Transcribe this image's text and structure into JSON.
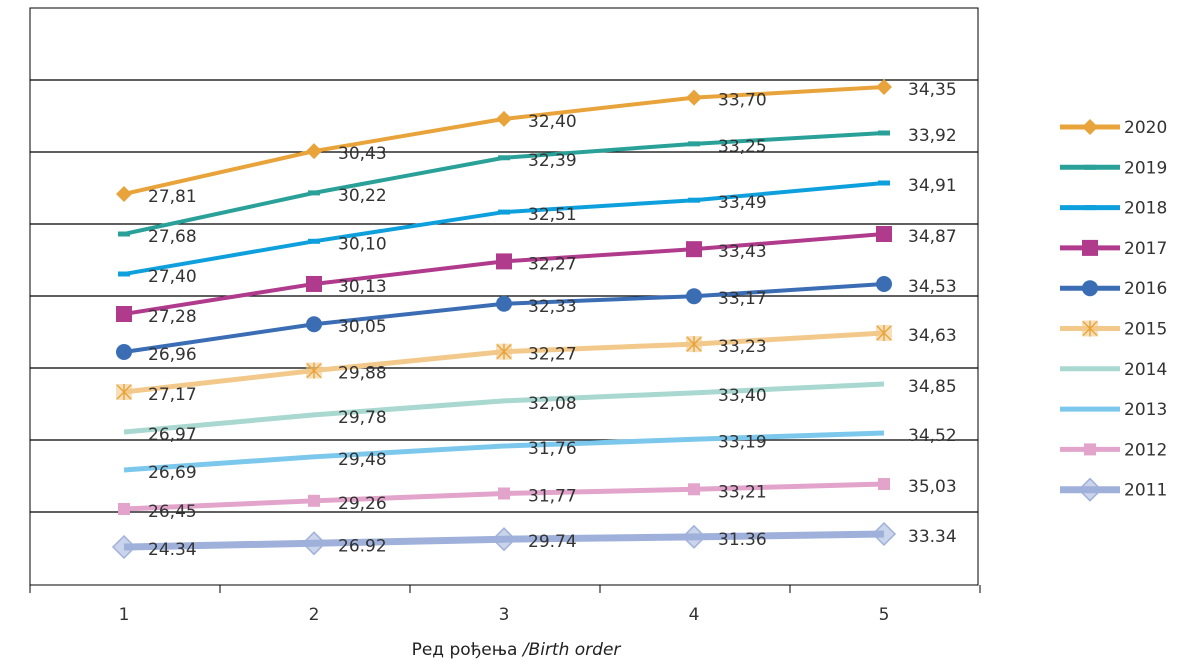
{
  "chart_data": {
    "type": "line",
    "title": "",
    "xlabel_main": "Ред рођења",
    "xlabel_italic": " /Birth order",
    "ylabel": "",
    "x": [
      1,
      2,
      3,
      4,
      5
    ],
    "grid": "horizontal",
    "legend_position": "right",
    "series": [
      {
        "name": "2020",
        "values": [
          27.81,
          30.43,
          32.4,
          33.7,
          34.35
        ],
        "labels": [
          "27,81",
          "30,43",
          "32,40",
          "33,70",
          "34,35"
        ],
        "color": "#e8a33a",
        "marker": "diamond"
      },
      {
        "name": "2019",
        "values": [
          27.68,
          30.22,
          32.39,
          33.25,
          33.92
        ],
        "labels": [
          "27,68",
          "30,22",
          "32,39",
          "33,25",
          "33,92"
        ],
        "color": "#2aa198",
        "marker": "dash"
      },
      {
        "name": "2018",
        "values": [
          27.4,
          30.1,
          32.51,
          33.49,
          34.91
        ],
        "labels": [
          "27,40",
          "30,10",
          "32,51",
          "33,49",
          "34,91"
        ],
        "color": "#0ea0dd",
        "marker": "dash"
      },
      {
        "name": "2017",
        "values": [
          27.28,
          30.13,
          32.27,
          33.43,
          34.87
        ],
        "labels": [
          "27,28",
          "30,13",
          "32,27",
          "33,43",
          "34,87"
        ],
        "color": "#b03a8c",
        "marker": "square"
      },
      {
        "name": "2016",
        "values": [
          26.96,
          30.05,
          32.33,
          33.17,
          34.53
        ],
        "labels": [
          "26,96",
          "30,05",
          "32,33",
          "33,17",
          "34,53"
        ],
        "color": "#3b6db5",
        "marker": "circle"
      },
      {
        "name": "2015",
        "values": [
          27.17,
          29.88,
          32.27,
          33.23,
          34.63
        ],
        "labels": [
          "27,17",
          "29,88",
          "32,27",
          "33,23",
          "34,63"
        ],
        "color": "#f2c98a",
        "marker": "star"
      },
      {
        "name": "2014",
        "values": [
          26.97,
          29.78,
          32.08,
          33.4,
          34.85
        ],
        "labels": [
          "26,97",
          "29,78",
          "32,08",
          "33,40",
          "34,85"
        ],
        "color": "#a8d8d0",
        "marker": "none"
      },
      {
        "name": "2013",
        "values": [
          26.69,
          29.48,
          31.76,
          33.19,
          34.52
        ],
        "labels": [
          "26,69",
          "29,48",
          "31,76",
          "33,19",
          "34,52"
        ],
        "color": "#7cc8ec",
        "marker": "none"
      },
      {
        "name": "2012",
        "values": [
          26.45,
          29.26,
          31.77,
          33.21,
          35.03
        ],
        "labels": [
          "26,45",
          "29,26",
          "31,77",
          "33,21",
          "35,03"
        ],
        "color": "#e2a4cb",
        "marker": "smallsquare"
      },
      {
        "name": "2011",
        "values": [
          24.34,
          26.92,
          29.74,
          31.36,
          33.34
        ],
        "labels": [
          "24.34",
          "26.92",
          "29.74",
          "31.36",
          "33.34"
        ],
        "color": "#9fb1da",
        "marker": "bigdiamond"
      }
    ]
  }
}
